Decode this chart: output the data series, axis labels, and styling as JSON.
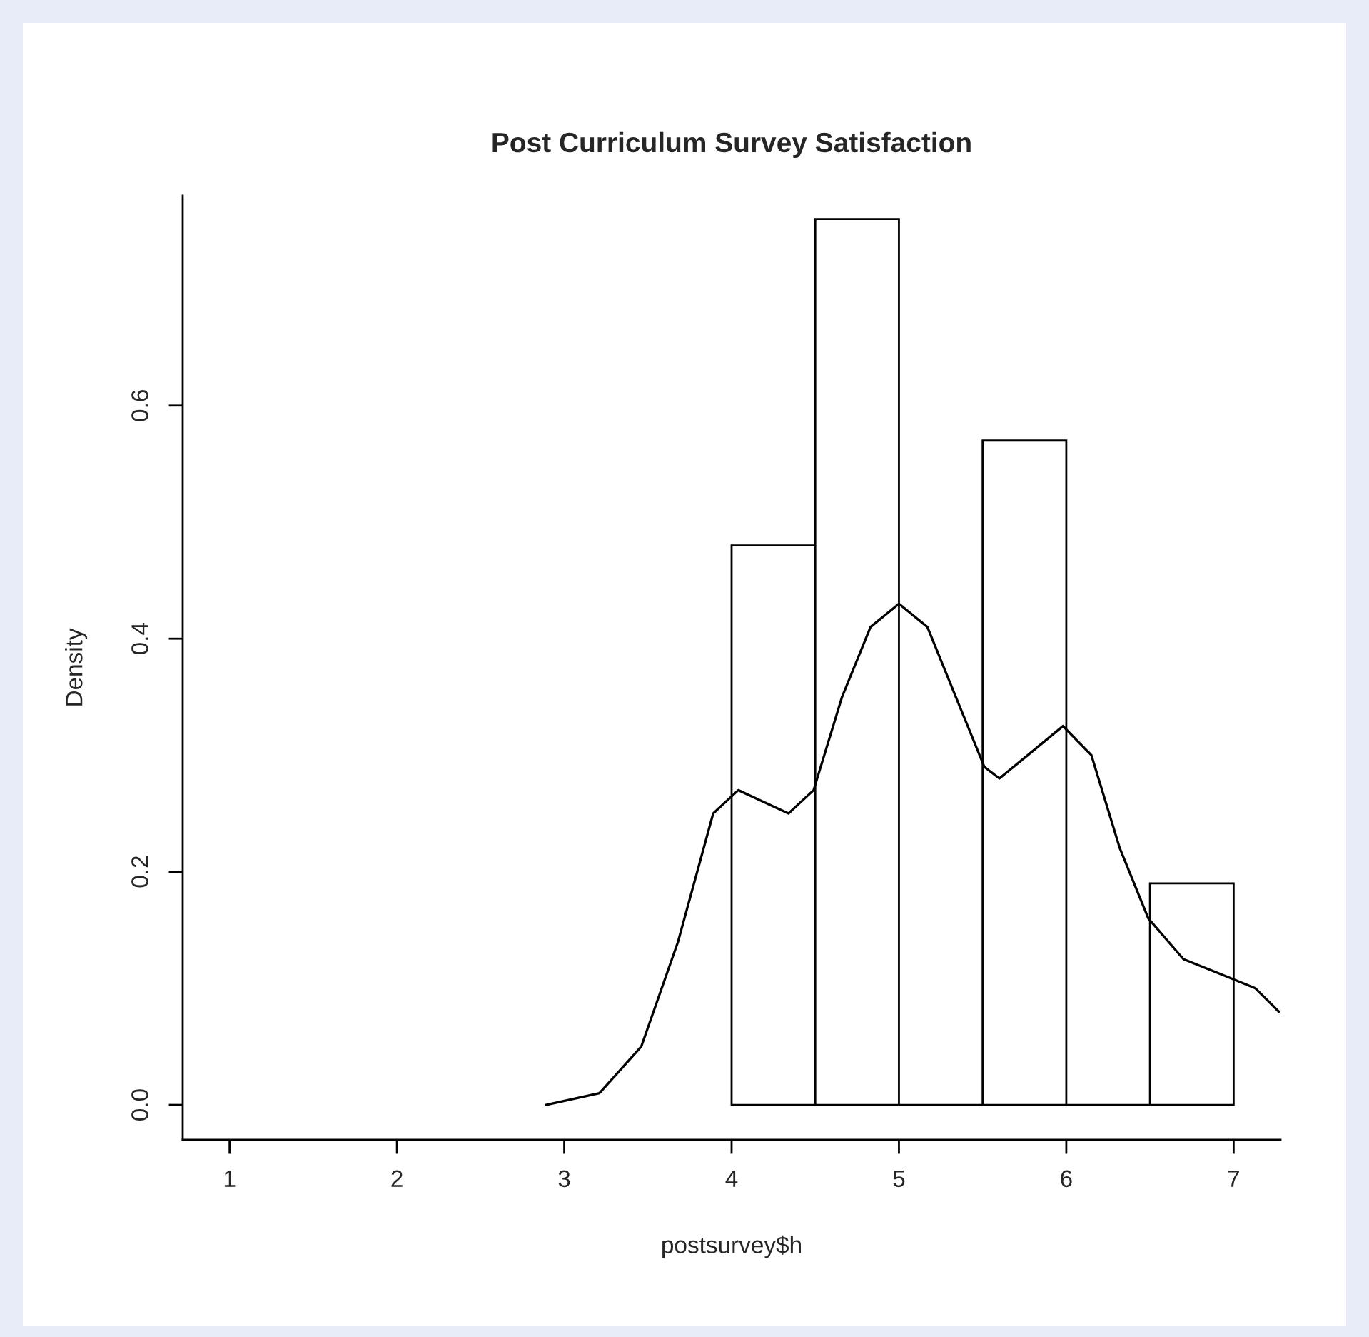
{
  "chart_data": {
    "type": "histogram",
    "title": "Post Curriculum Survey Satisfaction",
    "xlabel": "postsurvey$h",
    "ylabel": "Density",
    "bins": [
      4,
      4.5,
      5,
      5.5,
      6,
      6.5,
      7
    ],
    "values": [
      0.48,
      0.76,
      0,
      0.57,
      0,
      0.19
    ],
    "colors": [
      "#ffffff",
      "#ffffff",
      "#000000",
      "#ffffff",
      "#000000",
      "#ffffff"
    ],
    "series": [
      {
        "type": "line",
        "color": "#000000",
        "x": [
          2.89,
          3.21,
          3.46,
          3.68,
          3.89,
          4.04,
          4.19,
          4.34,
          4.49,
          4.66,
          4.83,
          5.0,
          5.17,
          5.34,
          5.51,
          5.6,
          5.77,
          5.98,
          6.15,
          6.32,
          6.49,
          6.7,
          6.96,
          7.13,
          7.27
        ],
        "values": [
          0.0,
          0.01,
          0.05,
          0.14,
          0.25,
          0.27,
          0.26,
          0.25,
          0.27,
          0.35,
          0.41,
          0.43,
          0.41,
          0.35,
          0.29,
          0.28,
          0.3,
          0.325,
          0.3,
          0.22,
          0.16,
          0.125,
          0.11,
          0.1,
          0.08
        ]
      }
    ],
    "xlim": [
      0.72,
      7.28
    ],
    "ylim": [
      -0.03,
      0.78
    ],
    "xticks": [
      1,
      2,
      3,
      4,
      5,
      6,
      7
    ],
    "yticks": [
      {
        "value": 0,
        "label": "0.0"
      },
      {
        "value": 0.2,
        "label": "0.2"
      },
      {
        "value": 0.4,
        "label": "0.4"
      },
      {
        "value": 0.6,
        "label": "0.6"
      }
    ],
    "grid": false,
    "legend": false
  }
}
